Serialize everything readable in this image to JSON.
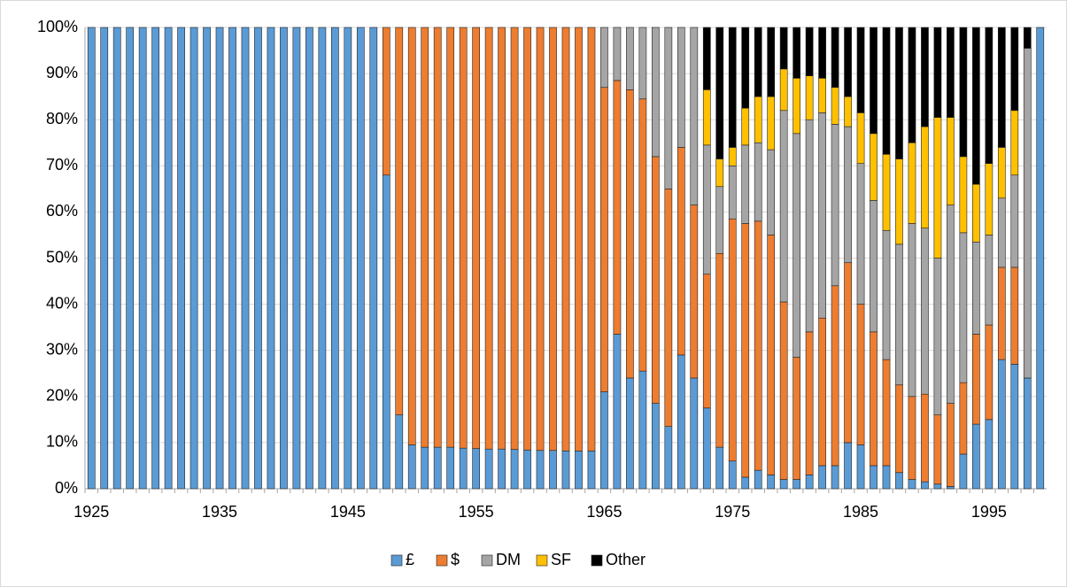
{
  "chart_data": {
    "type": "stacked-bar-percent",
    "categories": [
      "1925",
      null,
      null,
      null,
      null,
      null,
      null,
      null,
      null,
      null,
      "1935",
      null,
      null,
      null,
      null,
      null,
      null,
      null,
      null,
      null,
      "1945",
      null,
      null,
      null,
      null,
      null,
      null,
      null,
      null,
      null,
      "1955",
      null,
      null,
      null,
      null,
      null,
      null,
      null,
      null,
      null,
      "1965",
      null,
      null,
      null,
      null,
      null,
      null,
      null,
      null,
      null,
      "1975",
      null,
      null,
      null,
      null,
      null,
      null,
      null,
      null,
      null,
      "1985",
      null,
      null,
      null,
      null,
      null,
      null,
      null,
      null,
      null,
      "1995",
      null,
      null,
      null,
      null
    ],
    "series": [
      {
        "name": "£",
        "color": "#5b9bd5",
        "values": [
          100,
          100,
          100,
          100,
          100,
          100,
          100,
          100,
          100,
          100,
          100,
          100,
          100,
          100,
          100,
          100,
          100,
          100,
          100,
          100,
          100,
          100,
          100,
          68,
          16,
          9.5,
          9,
          9,
          9,
          8.8,
          8.7,
          8.6,
          8.6,
          8.5,
          8.4,
          8.3,
          8.3,
          8.2,
          8.2,
          8.2,
          21,
          33.5,
          24,
          25.5,
          18.5,
          13.5,
          29,
          24,
          17.5,
          9,
          6,
          2.5,
          4,
          3,
          2,
          2,
          3,
          5,
          5,
          10,
          9.5,
          5,
          5,
          3.5,
          2,
          1.5,
          1,
          0.5,
          7.5,
          14,
          15,
          28,
          27,
          24,
          100
        ]
      },
      {
        "name": "$",
        "color": "#ed7d31",
        "values": [
          0,
          0,
          0,
          0,
          0,
          0,
          0,
          0,
          0,
          0,
          0,
          0,
          0,
          0,
          0,
          0,
          0,
          0,
          0,
          0,
          0,
          0,
          0,
          32,
          84,
          90.5,
          91,
          91,
          91,
          91.2,
          91.3,
          91.4,
          91.4,
          91.5,
          91.6,
          91.7,
          91.7,
          91.8,
          91.8,
          91.8,
          66,
          55,
          62.5,
          59,
          53.5,
          51.5,
          45,
          37.5,
          29,
          42,
          52.5,
          55,
          54,
          52,
          38.5,
          26.5,
          31,
          32,
          39,
          39,
          30.5,
          29,
          23,
          19,
          18,
          19,
          15,
          18,
          15.5,
          19.5,
          20.5,
          20,
          21,
          0,
          0
        ]
      },
      {
        "name": "DM",
        "color": "#a5a5a5",
        "values": [
          0,
          0,
          0,
          0,
          0,
          0,
          0,
          0,
          0,
          0,
          0,
          0,
          0,
          0,
          0,
          0,
          0,
          0,
          0,
          0,
          0,
          0,
          0,
          0,
          0,
          0,
          0,
          0,
          0,
          0,
          0,
          0,
          0,
          0,
          0,
          0,
          0,
          0,
          0,
          0,
          13,
          11.5,
          13.5,
          15.5,
          28,
          35,
          26,
          38.5,
          28,
          14.5,
          11.5,
          17,
          17,
          18.5,
          41.5,
          48.5,
          46,
          44.5,
          35,
          29.5,
          30.5,
          28.5,
          28,
          30.5,
          37.5,
          36,
          34,
          43,
          32.5,
          20,
          19.5,
          15,
          20,
          71.5,
          0
        ]
      },
      {
        "name": "SF",
        "color": "#ffc000",
        "values": [
          0,
          0,
          0,
          0,
          0,
          0,
          0,
          0,
          0,
          0,
          0,
          0,
          0,
          0,
          0,
          0,
          0,
          0,
          0,
          0,
          0,
          0,
          0,
          0,
          0,
          0,
          0,
          0,
          0,
          0,
          0,
          0,
          0,
          0,
          0,
          0,
          0,
          0,
          0,
          0,
          0,
          0,
          0,
          0,
          0,
          0,
          0,
          0,
          12,
          6,
          4,
          8,
          10,
          11.5,
          9,
          12,
          9.5,
          7.5,
          8,
          6.5,
          11,
          14.5,
          16.5,
          18.5,
          17.5,
          22,
          30.5,
          19,
          16.5,
          12.5,
          15.5,
          11,
          14,
          0,
          0
        ]
      },
      {
        "name": "Other",
        "color": "#000000",
        "values": [
          0,
          0,
          0,
          0,
          0,
          0,
          0,
          0,
          0,
          0,
          0,
          0,
          0,
          0,
          0,
          0,
          0,
          0,
          0,
          0,
          0,
          0,
          0,
          0,
          0,
          0,
          0,
          0,
          0,
          0,
          0,
          0,
          0,
          0,
          0,
          0,
          0,
          0,
          0,
          0,
          0,
          0,
          0,
          0,
          0,
          0,
          0,
          0,
          13.5,
          28.5,
          26,
          17.5,
          15,
          15,
          9,
          11,
          10.5,
          11,
          13,
          15,
          18.5,
          23,
          27.5,
          28.5,
          25,
          21.5,
          19.5,
          19.5,
          28,
          34,
          29.5,
          26,
          18,
          4.5,
          0
        ]
      }
    ],
    "ylim": [
      0,
      100
    ],
    "yticks": [
      {
        "value": 0,
        "label": "0%"
      },
      {
        "value": 10,
        "label": "10%"
      },
      {
        "value": 20,
        "label": "20%"
      },
      {
        "value": 30,
        "label": "30%"
      },
      {
        "value": 40,
        "label": "40%"
      },
      {
        "value": 50,
        "label": "50%"
      },
      {
        "value": 60,
        "label": "60%"
      },
      {
        "value": 70,
        "label": "70%"
      },
      {
        "value": 80,
        "label": "80%"
      },
      {
        "value": 90,
        "label": "90%"
      },
      {
        "value": 100,
        "label": "100%"
      }
    ],
    "grid": true,
    "legend": "bottom"
  }
}
